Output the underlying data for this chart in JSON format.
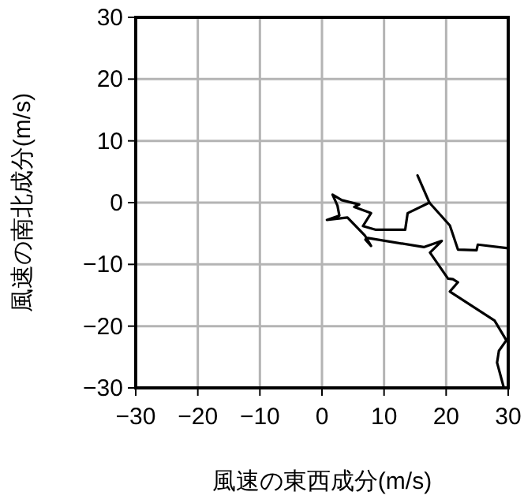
{
  "chart_data": {
    "type": "line",
    "xlabel": "風速の東西成分(m/s)",
    "ylabel": "風速の南北成分(m/s)",
    "xlim": [
      -30,
      30
    ],
    "ylim": [
      -30,
      30
    ],
    "xticks": [
      -30,
      -20,
      -10,
      0,
      10,
      20,
      30
    ],
    "yticks": [
      -30,
      -20,
      -10,
      0,
      10,
      20,
      30
    ],
    "grid": true,
    "series": [
      {
        "color": "#000000",
        "x": [
          15.4,
          17.3,
          20.6,
          21.9,
          24.9,
          25.1,
          30
        ],
        "values": [
          4.4,
          0,
          -3.7,
          -7.6,
          -7.7,
          -6.8,
          -7.4
        ]
      },
      {
        "color": "#000000",
        "x": [
          17.3,
          13.8,
          13.4,
          8.7,
          6.6,
          7.9,
          5.2,
          6.0,
          3.2,
          1.7,
          2.5,
          2.8,
          0.8,
          4.1,
          6.9,
          7.9,
          7.0,
          7.2,
          16.4,
          19.3,
          17.4,
          20.3,
          21.1,
          21.9,
          20.6,
          27.8,
          29.7,
          28.5,
          28.2,
          29.3
        ],
        "values": [
          0,
          -1.7,
          -4.4,
          -4.4,
          -3.8,
          -1.7,
          -0.7,
          -0.3,
          0.4,
          1.3,
          -0.5,
          -2.1,
          -2.8,
          -2.4,
          -5.3,
          -7.0,
          -6.0,
          -5.7,
          -7.2,
          -6.2,
          -8.1,
          -12.3,
          -12.4,
          -12.9,
          -14.4,
          -19.1,
          -22.3,
          -24.0,
          -25.9,
          -30
        ]
      }
    ]
  }
}
